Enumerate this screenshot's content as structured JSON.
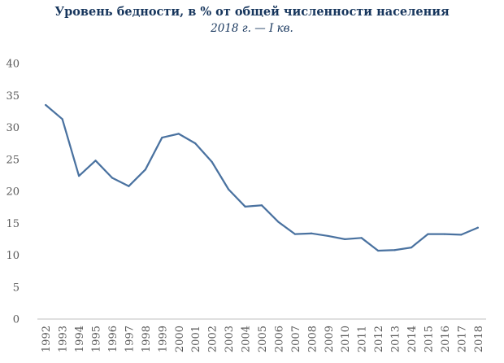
{
  "chart_data": {
    "type": "line",
    "title": "Уровень бедности, в % от общей численности населения",
    "subtitle": "2018 г. — I кв.",
    "xlabel": "",
    "ylabel": "",
    "ylim": [
      0,
      40
    ],
    "yticks": [
      "0",
      "5",
      "10",
      "15",
      "20",
      "25",
      "30",
      "35",
      "40"
    ],
    "grid": false,
    "legend": "none",
    "x": [
      "1992",
      "1993",
      "1994",
      "1995",
      "1996",
      "1997",
      "1998",
      "1999",
      "2000",
      "2001",
      "2002",
      "2003",
      "2004",
      "2005",
      "2006",
      "2007",
      "2008",
      "2009",
      "2010",
      "2011",
      "2012",
      "2013",
      "2014",
      "2015",
      "2016",
      "2017",
      "2018"
    ],
    "series": [
      {
        "values": [
          33.5,
          31.3,
          22.4,
          24.8,
          22.1,
          20.8,
          23.4,
          28.4,
          29.0,
          27.5,
          24.6,
          20.3,
          17.6,
          17.8,
          15.2,
          13.3,
          13.4,
          13.0,
          12.5,
          12.7,
          10.7,
          10.8,
          11.2,
          13.3,
          13.3,
          13.2,
          14.3
        ],
        "color": "#4a72a0"
      }
    ]
  }
}
